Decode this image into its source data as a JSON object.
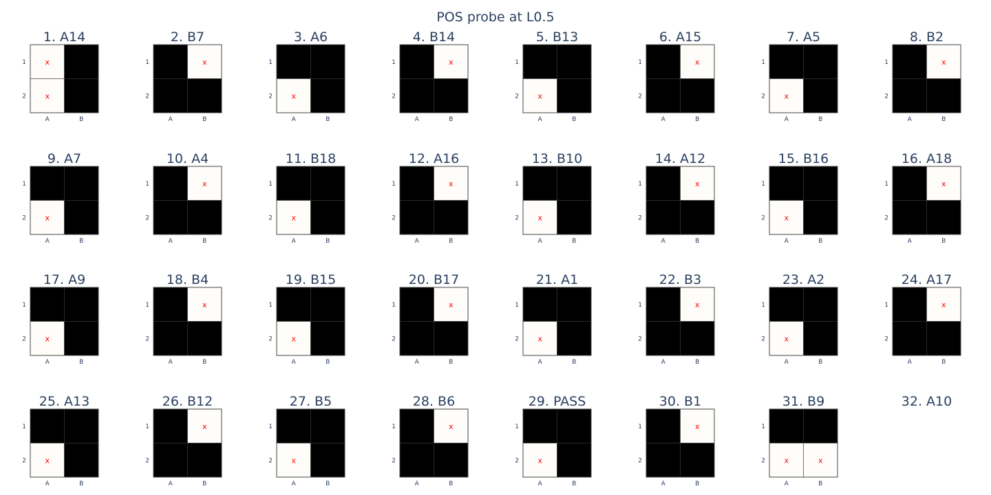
{
  "chart_data": {
    "type": "heatmap",
    "title": "POS probe at L0.5",
    "colorscale": {
      "0": "#000000",
      "1": "#fffdf9"
    },
    "mark_symbol": "x",
    "mark_color": "#ff0000",
    "x_ticks": [
      "A",
      "B"
    ],
    "y_ticks": [
      "1",
      "2"
    ],
    "panels": [
      {
        "title": "1. A14",
        "values": [
          [
            1,
            0
          ],
          [
            1,
            0
          ]
        ],
        "marks": [
          [
            1,
            0
          ],
          [
            1,
            0
          ]
        ]
      },
      {
        "title": "2. B7",
        "values": [
          [
            0,
            1
          ],
          [
            0,
            0
          ]
        ],
        "marks": [
          [
            0,
            1
          ],
          [
            0,
            0
          ]
        ]
      },
      {
        "title": "3. A6",
        "values": [
          [
            0,
            0
          ],
          [
            1,
            0
          ]
        ],
        "marks": [
          [
            0,
            0
          ],
          [
            1,
            0
          ]
        ]
      },
      {
        "title": "4. B14",
        "values": [
          [
            0,
            1
          ],
          [
            0,
            0
          ]
        ],
        "marks": [
          [
            0,
            1
          ],
          [
            0,
            0
          ]
        ]
      },
      {
        "title": "5. B13",
        "values": [
          [
            0,
            0
          ],
          [
            1,
            0
          ]
        ],
        "marks": [
          [
            0,
            0
          ],
          [
            1,
            0
          ]
        ]
      },
      {
        "title": "6. A15",
        "values": [
          [
            0,
            1
          ],
          [
            0,
            0
          ]
        ],
        "marks": [
          [
            0,
            1
          ],
          [
            0,
            0
          ]
        ]
      },
      {
        "title": "7. A5",
        "values": [
          [
            0,
            0
          ],
          [
            1,
            0
          ]
        ],
        "marks": [
          [
            0,
            0
          ],
          [
            1,
            0
          ]
        ]
      },
      {
        "title": "8. B2",
        "values": [
          [
            0,
            1
          ],
          [
            0,
            0
          ]
        ],
        "marks": [
          [
            0,
            1
          ],
          [
            0,
            0
          ]
        ]
      },
      {
        "title": "9. A7",
        "values": [
          [
            0,
            0
          ],
          [
            1,
            0
          ]
        ],
        "marks": [
          [
            0,
            0
          ],
          [
            1,
            0
          ]
        ]
      },
      {
        "title": "10. A4",
        "values": [
          [
            0,
            1
          ],
          [
            0,
            0
          ]
        ],
        "marks": [
          [
            0,
            1
          ],
          [
            0,
            0
          ]
        ]
      },
      {
        "title": "11. B18",
        "values": [
          [
            0,
            0
          ],
          [
            1,
            0
          ]
        ],
        "marks": [
          [
            0,
            0
          ],
          [
            1,
            0
          ]
        ]
      },
      {
        "title": "12. A16",
        "values": [
          [
            0,
            1
          ],
          [
            0,
            0
          ]
        ],
        "marks": [
          [
            0,
            1
          ],
          [
            0,
            0
          ]
        ]
      },
      {
        "title": "13. B10",
        "values": [
          [
            0,
            0
          ],
          [
            1,
            0
          ]
        ],
        "marks": [
          [
            0,
            0
          ],
          [
            1,
            0
          ]
        ]
      },
      {
        "title": "14. A12",
        "values": [
          [
            0,
            1
          ],
          [
            0,
            0
          ]
        ],
        "marks": [
          [
            0,
            1
          ],
          [
            0,
            0
          ]
        ]
      },
      {
        "title": "15. B16",
        "values": [
          [
            0,
            0
          ],
          [
            1,
            0
          ]
        ],
        "marks": [
          [
            0,
            0
          ],
          [
            1,
            0
          ]
        ]
      },
      {
        "title": "16. A18",
        "values": [
          [
            0,
            1
          ],
          [
            0,
            0
          ]
        ],
        "marks": [
          [
            0,
            1
          ],
          [
            0,
            0
          ]
        ]
      },
      {
        "title": "17. A9",
        "values": [
          [
            0,
            0
          ],
          [
            1,
            0
          ]
        ],
        "marks": [
          [
            0,
            0
          ],
          [
            1,
            0
          ]
        ]
      },
      {
        "title": "18. B4",
        "values": [
          [
            0,
            1
          ],
          [
            0,
            0
          ]
        ],
        "marks": [
          [
            0,
            1
          ],
          [
            0,
            0
          ]
        ]
      },
      {
        "title": "19. B15",
        "values": [
          [
            0,
            0
          ],
          [
            1,
            0
          ]
        ],
        "marks": [
          [
            0,
            0
          ],
          [
            1,
            0
          ]
        ]
      },
      {
        "title": "20. B17",
        "values": [
          [
            0,
            1
          ],
          [
            0,
            0
          ]
        ],
        "marks": [
          [
            0,
            1
          ],
          [
            0,
            0
          ]
        ]
      },
      {
        "title": "21. A1",
        "values": [
          [
            0,
            0
          ],
          [
            1,
            0
          ]
        ],
        "marks": [
          [
            0,
            0
          ],
          [
            1,
            0
          ]
        ]
      },
      {
        "title": "22. B3",
        "values": [
          [
            0,
            1
          ],
          [
            0,
            0
          ]
        ],
        "marks": [
          [
            0,
            1
          ],
          [
            0,
            0
          ]
        ]
      },
      {
        "title": "23. A2",
        "values": [
          [
            0,
            0
          ],
          [
            1,
            0
          ]
        ],
        "marks": [
          [
            0,
            0
          ],
          [
            1,
            0
          ]
        ]
      },
      {
        "title": "24. A17",
        "values": [
          [
            0,
            1
          ],
          [
            0,
            0
          ]
        ],
        "marks": [
          [
            0,
            1
          ],
          [
            0,
            0
          ]
        ]
      },
      {
        "title": "25. A13",
        "values": [
          [
            0,
            0
          ],
          [
            1,
            0
          ]
        ],
        "marks": [
          [
            0,
            0
          ],
          [
            1,
            0
          ]
        ]
      },
      {
        "title": "26. B12",
        "values": [
          [
            0,
            1
          ],
          [
            0,
            0
          ]
        ],
        "marks": [
          [
            0,
            1
          ],
          [
            0,
            0
          ]
        ]
      },
      {
        "title": "27. B5",
        "values": [
          [
            0,
            0
          ],
          [
            1,
            0
          ]
        ],
        "marks": [
          [
            0,
            0
          ],
          [
            1,
            0
          ]
        ]
      },
      {
        "title": "28. B6",
        "values": [
          [
            0,
            1
          ],
          [
            0,
            0
          ]
        ],
        "marks": [
          [
            0,
            1
          ],
          [
            0,
            0
          ]
        ]
      },
      {
        "title": "29. PASS",
        "values": [
          [
            0,
            0
          ],
          [
            1,
            0
          ]
        ],
        "marks": [
          [
            0,
            0
          ],
          [
            1,
            0
          ]
        ]
      },
      {
        "title": "30. B1",
        "values": [
          [
            0,
            1
          ],
          [
            0,
            0
          ]
        ],
        "marks": [
          [
            0,
            1
          ],
          [
            0,
            0
          ]
        ]
      },
      {
        "title": "31. B9",
        "values": [
          [
            0,
            0
          ],
          [
            1,
            1
          ]
        ],
        "marks": [
          [
            0,
            0
          ],
          [
            1,
            1
          ]
        ]
      },
      {
        "title": "32. A10",
        "values": null,
        "marks": null
      }
    ]
  }
}
